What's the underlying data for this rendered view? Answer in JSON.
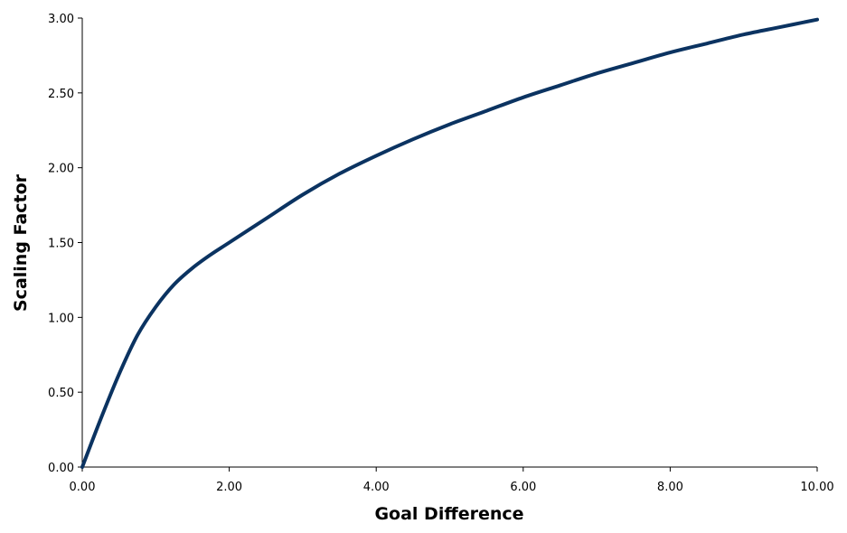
{
  "chart_data": {
    "type": "line",
    "title": "",
    "xlabel": "Goal Difference",
    "ylabel": "Scaling Factor",
    "xlim": [
      0,
      10
    ],
    "ylim": [
      0,
      3
    ],
    "xticks": [
      "0.00",
      "2.00",
      "4.00",
      "6.00",
      "8.00",
      "10.00"
    ],
    "yticks": [
      "0.00",
      "0.50",
      "1.00",
      "1.50",
      "2.00",
      "2.50",
      "3.00"
    ],
    "grid": false,
    "legend": "none",
    "series": [
      {
        "color": "#0b3361",
        "x": [
          0,
          0.25,
          0.5,
          0.75,
          1.0,
          1.25,
          1.5,
          1.75,
          2.0,
          2.5,
          3.0,
          3.5,
          4.0,
          4.5,
          5.0,
          5.5,
          6.0,
          6.5,
          7.0,
          7.5,
          8.0,
          8.5,
          9.0,
          9.5,
          10.0
        ],
        "y": [
          0,
          0.32,
          0.62,
          0.88,
          1.07,
          1.22,
          1.33,
          1.42,
          1.5,
          1.66,
          1.82,
          1.96,
          2.08,
          2.19,
          2.29,
          2.38,
          2.47,
          2.55,
          2.63,
          2.7,
          2.77,
          2.83,
          2.89,
          2.94,
          2.99
        ]
      }
    ]
  }
}
